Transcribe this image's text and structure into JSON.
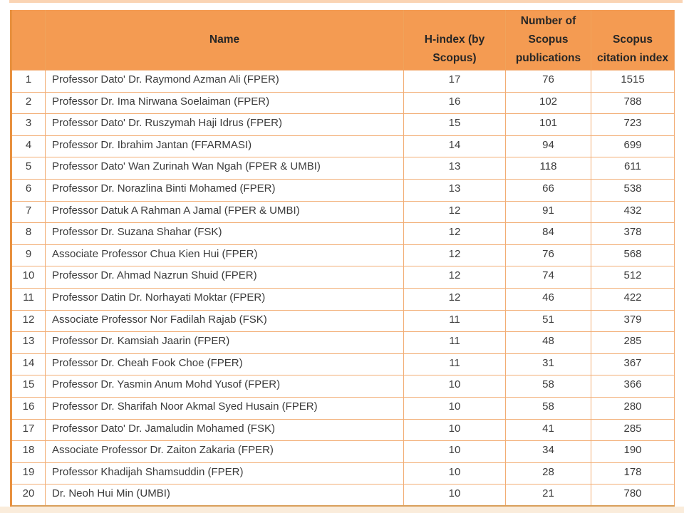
{
  "style": {
    "header_bg": "#f49b52",
    "header_text_color": "#262626",
    "grid_line_color": "#f2ad74",
    "outer_left_border": "#e8913f",
    "outer_bottom_border": "#d9a05c",
    "body_text_color": "#3b3b3b",
    "top_strip_color": "#f6b176",
    "bottom_strip_color": "#f9e7d2"
  },
  "chart_data": {
    "type": "table",
    "title": "",
    "columns": [
      "",
      "Name",
      "H-index (by Scopus)",
      "Number of Scopus publications",
      "Scopus citation index"
    ],
    "rows": [
      [
        "1",
        "Professor Dato' Dr. Raymond Azman Ali (FPER)",
        "17",
        "76",
        "1515"
      ],
      [
        "2",
        "Professor Dr. Ima Nirwana Soelaiman (FPER)",
        "16",
        "102",
        "788"
      ],
      [
        "3",
        "Professor Dato' Dr. Ruszymah Haji Idrus (FPER)",
        "15",
        "101",
        "723"
      ],
      [
        "4",
        "Professor Dr. Ibrahim Jantan (FFARMASI)",
        "14",
        "94",
        "699"
      ],
      [
        "5",
        "Professor Dato' Wan Zurinah Wan Ngah (FPER & UMBI)",
        "13",
        "118",
        "611"
      ],
      [
        "6",
        "Professor Dr. Norazlina Binti Mohamed (FPER)",
        "13",
        "66",
        "538"
      ],
      [
        "7",
        "Professor Datuk A Rahman A Jamal (FPER & UMBI)",
        "12",
        "91",
        "432"
      ],
      [
        "8",
        "Professor Dr. Suzana Shahar (FSK)",
        "12",
        "84",
        "378"
      ],
      [
        "9",
        "Associate Professor Chua Kien Hui (FPER)",
        "12",
        "76",
        "568"
      ],
      [
        "10",
        "Professor Dr. Ahmad Nazrun Shuid (FPER)",
        "12",
        "74",
        "512"
      ],
      [
        "11",
        "Professor Datin Dr. Norhayati Moktar (FPER)",
        "12",
        "46",
        "422"
      ],
      [
        "12",
        "Associate Professor Nor Fadilah Rajab (FSK)",
        "11",
        "51",
        "379"
      ],
      [
        "13",
        "Professor Dr. Kamsiah Jaarin (FPER)",
        "11",
        "48",
        "285"
      ],
      [
        "14",
        "Professor Dr. Cheah Fook Choe (FPER)",
        "11",
        "31",
        "367"
      ],
      [
        "15",
        "Professor Dr. Yasmin Anum Mohd Yusof (FPER)",
        "10",
        "58",
        "366"
      ],
      [
        "16",
        "Professor Dr. Sharifah Noor Akmal Syed Husain (FPER)",
        "10",
        "58",
        "280"
      ],
      [
        "17",
        "Professor Dato' Dr. Jamaludin Mohamed (FSK)",
        "10",
        "41",
        "285"
      ],
      [
        "18",
        "Associate Professor Dr. Zaiton Zakaria (FPER)",
        "10",
        "34",
        "190"
      ],
      [
        "19",
        "Professor Khadijah Shamsuddin (FPER)",
        "10",
        "28",
        "178"
      ],
      [
        "20",
        "Dr. Neoh Hui Min (UMBI)",
        "10",
        "21",
        "780"
      ]
    ]
  }
}
